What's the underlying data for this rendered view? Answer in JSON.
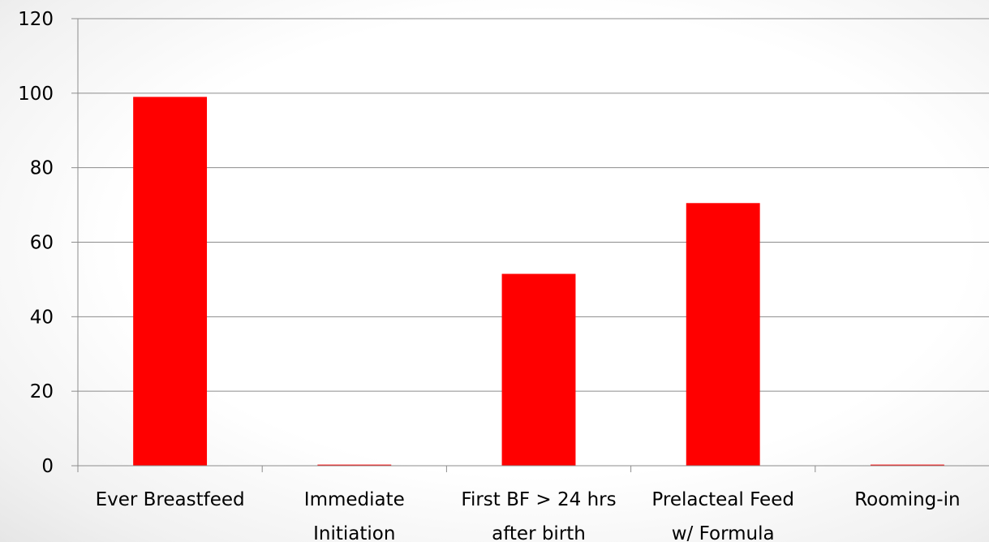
{
  "chart_data": {
    "type": "bar",
    "categories": [
      [
        "Ever Breastfeed"
      ],
      [
        "Immediate",
        "Initiation"
      ],
      [
        "First BF > 24 hrs",
        "after birth"
      ],
      [
        "Prelacteal Feed",
        "w/ Formula"
      ],
      [
        "Rooming-in"
      ]
    ],
    "values": [
      99,
      0.3,
      51.5,
      70.5,
      0.3
    ],
    "ylim": [
      0,
      120
    ],
    "yticks": [
      0,
      20,
      40,
      60,
      80,
      100,
      120
    ],
    "grid": true,
    "legend": "none",
    "title": "",
    "xlabel": "",
    "ylabel": "",
    "colors": {
      "bar": "#ff0000",
      "grid": "#8c8c8c",
      "axis": "#8c8c8c"
    }
  }
}
